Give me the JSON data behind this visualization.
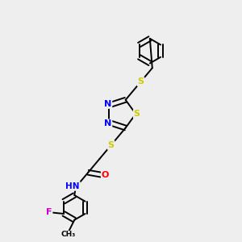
{
  "background_color": "#eeeeee",
  "bond_color": "#000000",
  "atom_colors": {
    "S": "#cccc00",
    "N": "#0000ff",
    "O": "#ff0000",
    "F": "#cc00cc",
    "C": "#000000",
    "H": "#000000"
  },
  "figsize": [
    3.0,
    3.0
  ],
  "dpi": 100
}
